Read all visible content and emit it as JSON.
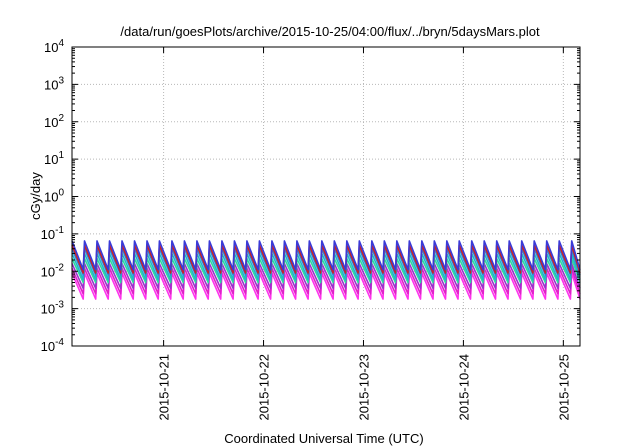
{
  "chart_data": {
    "type": "line",
    "title": "/data/run/goesPlots/archive/2015-10-25/04:00/flux/../bryn/5daysMars.plot",
    "xlabel": "Coordinated Universal Time (UTC)",
    "ylabel": "cGy/day",
    "y_scale": "log",
    "ylim": [
      0.0001,
      10000
    ],
    "y_ticks": [
      {
        "base": "10",
        "exp": "4"
      },
      {
        "base": "10",
        "exp": "3"
      },
      {
        "base": "10",
        "exp": "2"
      },
      {
        "base": "10",
        "exp": "1"
      },
      {
        "base": "10",
        "exp": "0"
      },
      {
        "base": "10",
        "exp": "-1"
      },
      {
        "base": "10",
        "exp": "-2"
      },
      {
        "base": "10",
        "exp": "-3"
      },
      {
        "base": "10",
        "exp": "-4"
      }
    ],
    "xlim": [
      "2015-10-20 02:00",
      "2015-10-25 04:00"
    ],
    "x_ticks": [
      "2015-10-21",
      "2015-10-22",
      "2015-10-23",
      "2015-10-24",
      "2015-10-25"
    ],
    "grid": true,
    "pattern": {
      "description_of_shape": "sawtooth",
      "period_hours": 3,
      "peak_series_max": 0.07,
      "peak_series_min": 0.012,
      "lowest_series_max": 0.012,
      "lowest_series_min": 0.0018
    },
    "series": [
      {
        "color": "#3a3ad8",
        "peak": 0.065,
        "trough": 0.011
      },
      {
        "color": "#cc2222",
        "peak": 0.05,
        "trough": 0.009
      },
      {
        "color": "#2f7fd8",
        "peak": 0.04,
        "trough": 0.008
      },
      {
        "color": "#20b8c8",
        "peak": 0.03,
        "trough": 0.006
      },
      {
        "color": "#2fd8a0",
        "peak": 0.022,
        "trough": 0.005
      },
      {
        "color": "#9a33cc",
        "peak": 0.016,
        "trough": 0.0035
      },
      {
        "color": "#e020c8",
        "peak": 0.012,
        "trough": 0.0025
      },
      {
        "color": "#ff33ee",
        "peak": 0.009,
        "trough": 0.0018
      }
    ]
  }
}
